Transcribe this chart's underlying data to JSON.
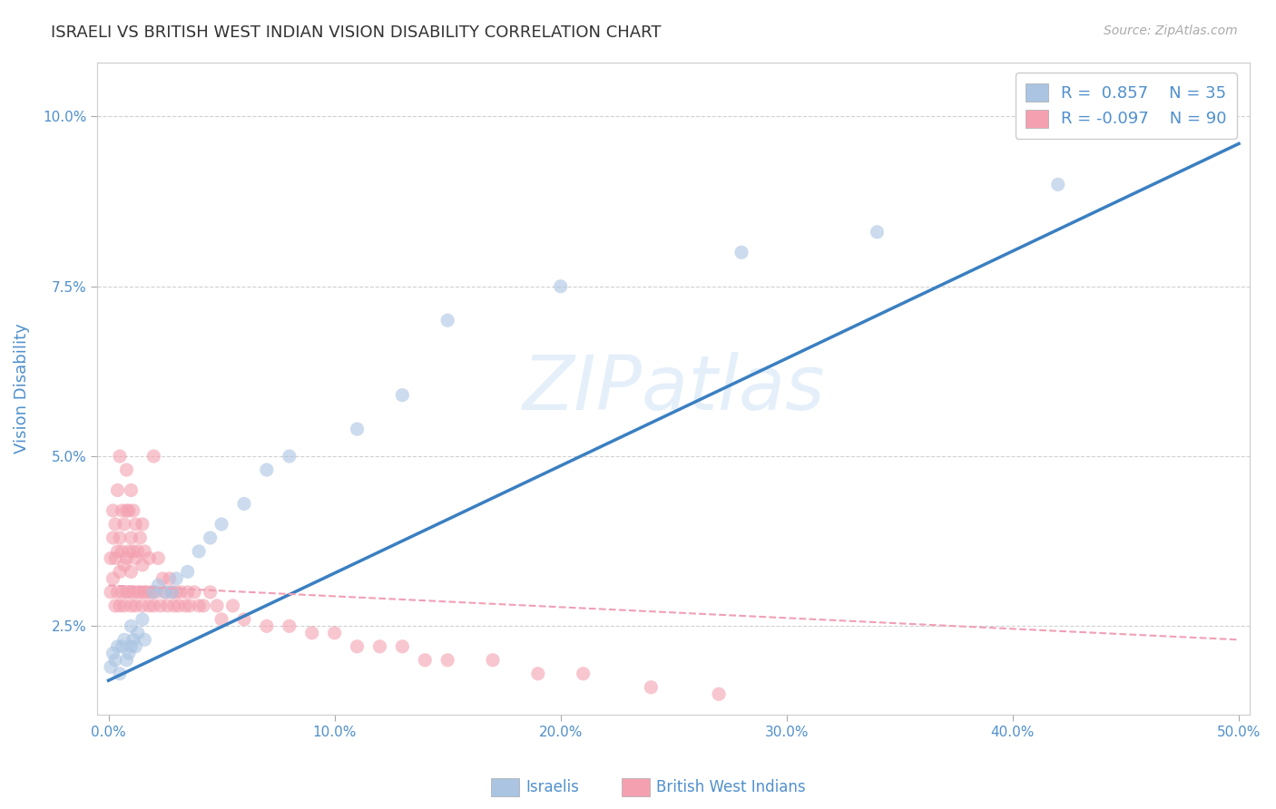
{
  "title": "ISRAELI VS BRITISH WEST INDIAN VISION DISABILITY CORRELATION CHART",
  "source": "Source: ZipAtlas.com",
  "ylabel": "Vision Disability",
  "xlim": [
    -0.005,
    0.505
  ],
  "ylim": [
    0.012,
    0.108
  ],
  "xticks": [
    0.0,
    0.1,
    0.2,
    0.3,
    0.4,
    0.5
  ],
  "yticks": [
    0.025,
    0.05,
    0.075,
    0.1
  ],
  "ytick_labels": [
    "2.5%",
    "5.0%",
    "7.5%",
    "10.0%"
  ],
  "xtick_labels": [
    "0.0%",
    "10.0%",
    "20.0%",
    "30.0%",
    "40.0%",
    "50.0%"
  ],
  "israeli_R": 0.857,
  "israeli_N": 35,
  "bwi_R": -0.097,
  "bwi_N": 90,
  "israeli_color": "#aac4e2",
  "bwi_color": "#f4a0b0",
  "israeli_line_color": "#3a7fc1",
  "bwi_line_color": "#f0a0b5",
  "watermark": "ZIPatlas",
  "background_color": "#ffffff",
  "grid_color": "#cccccc",
  "title_color": "#333333",
  "axis_label_color": "#5090cc",
  "israeli_scatter_x": [
    0.001,
    0.002,
    0.003,
    0.004,
    0.005,
    0.006,
    0.007,
    0.008,
    0.009,
    0.01,
    0.01,
    0.011,
    0.012,
    0.013,
    0.015,
    0.016,
    0.02,
    0.022,
    0.025,
    0.028,
    0.03,
    0.035,
    0.04,
    0.045,
    0.05,
    0.06,
    0.07,
    0.08,
    0.11,
    0.13,
    0.15,
    0.2,
    0.28,
    0.34,
    0.42
  ],
  "israeli_scatter_y": [
    0.019,
    0.021,
    0.02,
    0.022,
    0.018,
    0.022,
    0.023,
    0.02,
    0.021,
    0.025,
    0.022,
    0.023,
    0.022,
    0.024,
    0.026,
    0.023,
    0.03,
    0.031,
    0.03,
    0.03,
    0.032,
    0.033,
    0.036,
    0.038,
    0.04,
    0.043,
    0.048,
    0.05,
    0.054,
    0.059,
    0.07,
    0.075,
    0.08,
    0.083,
    0.09
  ],
  "bwi_scatter_x": [
    0.001,
    0.001,
    0.002,
    0.002,
    0.002,
    0.003,
    0.003,
    0.003,
    0.004,
    0.004,
    0.004,
    0.005,
    0.005,
    0.005,
    0.005,
    0.006,
    0.006,
    0.006,
    0.007,
    0.007,
    0.007,
    0.008,
    0.008,
    0.008,
    0.008,
    0.009,
    0.009,
    0.009,
    0.01,
    0.01,
    0.01,
    0.01,
    0.011,
    0.011,
    0.011,
    0.012,
    0.012,
    0.012,
    0.013,
    0.013,
    0.014,
    0.014,
    0.015,
    0.015,
    0.015,
    0.016,
    0.016,
    0.017,
    0.018,
    0.018,
    0.019,
    0.02,
    0.02,
    0.021,
    0.022,
    0.023,
    0.024,
    0.025,
    0.026,
    0.027,
    0.028,
    0.029,
    0.03,
    0.031,
    0.032,
    0.034,
    0.035,
    0.036,
    0.038,
    0.04,
    0.042,
    0.045,
    0.048,
    0.05,
    0.055,
    0.06,
    0.07,
    0.08,
    0.09,
    0.1,
    0.11,
    0.12,
    0.13,
    0.14,
    0.15,
    0.17,
    0.19,
    0.21,
    0.24,
    0.27
  ],
  "bwi_scatter_y": [
    0.03,
    0.035,
    0.032,
    0.038,
    0.042,
    0.028,
    0.035,
    0.04,
    0.03,
    0.036,
    0.045,
    0.028,
    0.033,
    0.038,
    0.05,
    0.03,
    0.036,
    0.042,
    0.028,
    0.034,
    0.04,
    0.03,
    0.035,
    0.042,
    0.048,
    0.03,
    0.036,
    0.042,
    0.028,
    0.033,
    0.038,
    0.045,
    0.03,
    0.036,
    0.042,
    0.028,
    0.035,
    0.04,
    0.03,
    0.036,
    0.03,
    0.038,
    0.028,
    0.034,
    0.04,
    0.03,
    0.036,
    0.03,
    0.028,
    0.035,
    0.03,
    0.028,
    0.05,
    0.03,
    0.035,
    0.028,
    0.032,
    0.03,
    0.028,
    0.032,
    0.03,
    0.028,
    0.03,
    0.028,
    0.03,
    0.028,
    0.03,
    0.028,
    0.03,
    0.028,
    0.028,
    0.03,
    0.028,
    0.026,
    0.028,
    0.026,
    0.025,
    0.025,
    0.024,
    0.024,
    0.022,
    0.022,
    0.022,
    0.02,
    0.02,
    0.02,
    0.018,
    0.018,
    0.016,
    0.015
  ],
  "isr_line_x0": 0.0,
  "isr_line_y0": 0.017,
  "isr_line_x1": 0.5,
  "isr_line_y1": 0.096,
  "bwi_line_x0": 0.0,
  "bwi_line_y0": 0.031,
  "bwi_line_x1": 0.5,
  "bwi_line_y1": 0.023
}
